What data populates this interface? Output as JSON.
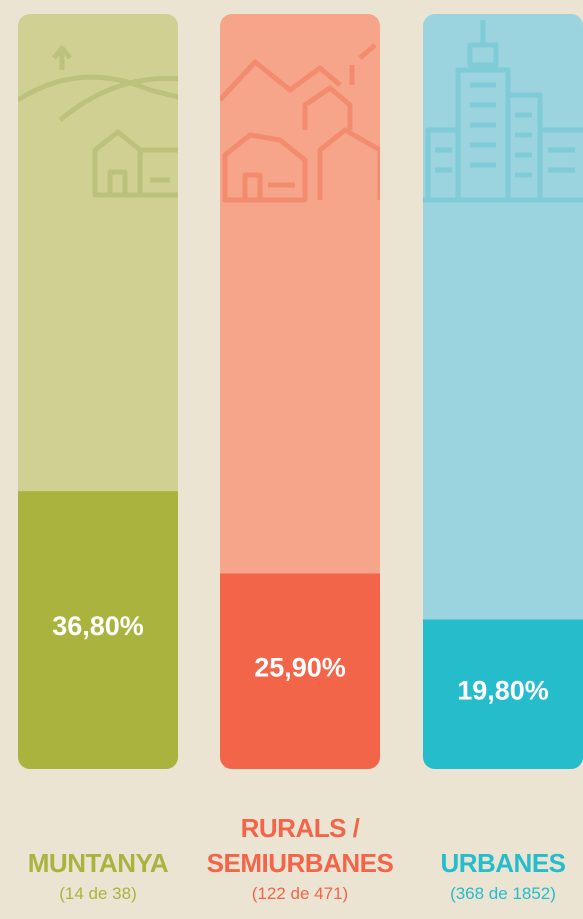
{
  "chart_data": {
    "type": "bar",
    "categories": [
      "MUNTANYA",
      "RURALS / SEMIURBANES",
      "URBANES"
    ],
    "sublabels": [
      "(14 de 38)",
      "(122 de 471)",
      "(368 de 1852)"
    ],
    "values": [
      36.8,
      25.9,
      19.8
    ],
    "value_labels": [
      "36,80%",
      "25,90%",
      "19,80%"
    ],
    "colors": [
      "#abb33f",
      "#f26549",
      "#25bccc"
    ],
    "track_colors": [
      "#d1d093",
      "#f6a58a",
      "#9bd4df"
    ],
    "ylim": [
      0,
      100
    ]
  }
}
